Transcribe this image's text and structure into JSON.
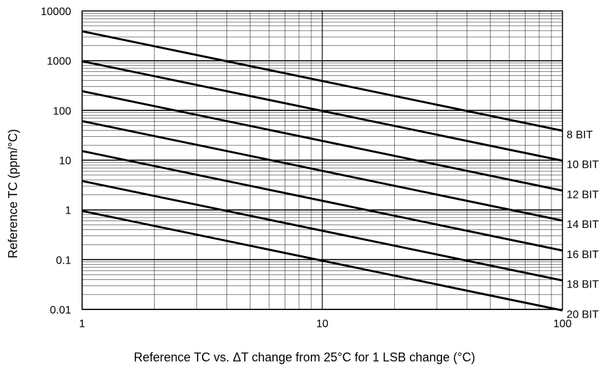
{
  "chart_data": {
    "type": "line",
    "title": "",
    "xlabel": "Reference TC vs. ΔT change from 25°C for 1 LSB change (°C)",
    "ylabel": "Reference TC (ppm/°C)",
    "x_scale": "log",
    "y_scale": "log",
    "xlim": [
      1,
      100
    ],
    "ylim": [
      0.01,
      10000
    ],
    "x_ticks": [
      "1",
      "10",
      "100"
    ],
    "y_ticks": [
      "0.01",
      "0.1",
      "1",
      "10",
      "100",
      "1000",
      "10000"
    ],
    "grid": true,
    "line_color": "#000000",
    "series": [
      {
        "name": "8 BIT",
        "x": [
          1,
          100
        ],
        "y": [
          3906.25,
          39.0625
        ]
      },
      {
        "name": "10 BIT",
        "x": [
          1,
          100
        ],
        "y": [
          976.5625,
          9.765625
        ]
      },
      {
        "name": "12 BIT",
        "x": [
          1,
          100
        ],
        "y": [
          244.140625,
          2.44140625
        ]
      },
      {
        "name": "14 BIT",
        "x": [
          1,
          100
        ],
        "y": [
          61.03515625,
          0.6103515625
        ]
      },
      {
        "name": "16 BIT",
        "x": [
          1,
          100
        ],
        "y": [
          15.2587890625,
          0.152587890625
        ]
      },
      {
        "name": "18 BIT",
        "x": [
          1,
          100
        ],
        "y": [
          3.814697265625,
          0.03814697265625
        ]
      },
      {
        "name": "20 BIT",
        "x": [
          1,
          100
        ],
        "y": [
          0.95367431640625,
          0.0095367431640625
        ]
      }
    ]
  }
}
